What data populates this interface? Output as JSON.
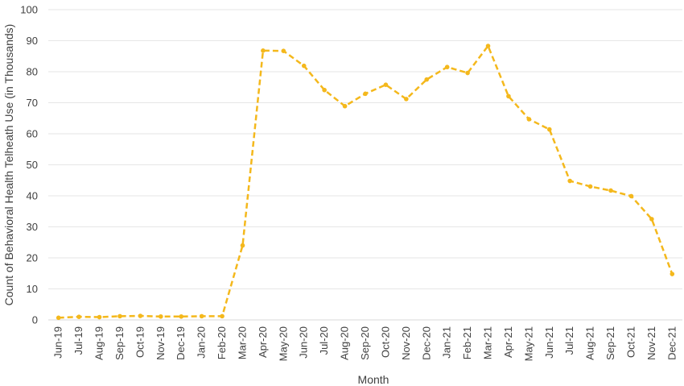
{
  "chart_data": {
    "type": "line",
    "title": "",
    "xlabel": "Month",
    "ylabel": "Count of  Behavioral Health Telheath Use (in Thousands)",
    "ylim": [
      0,
      100
    ],
    "yticks": [
      0,
      10,
      20,
      30,
      40,
      50,
      60,
      70,
      80,
      90,
      100
    ],
    "grid": true,
    "legend": "none",
    "categories": [
      "Jun-19",
      "Jul-19",
      "Aug-19",
      "Sep-19",
      "Oct-19",
      "Nov-19",
      "Dec-19",
      "Jan-20",
      "Feb-20",
      "Mar-20",
      "Apr-20",
      "May-20",
      "Jun-20",
      "Jul-20",
      "Aug-20",
      "Sep-20",
      "Oct-20",
      "Nov-20",
      "Dec-20",
      "Jan-21",
      "Feb-21",
      "Mar-21",
      "Apr-21",
      "May-21",
      "Jun-21",
      "Jul-21",
      "Aug-21",
      "Sep-21",
      "Oct-21",
      "Nov-21",
      "Dec-21"
    ],
    "series": [
      {
        "color": "#F4B81C",
        "line_style": "dashed",
        "marker": "circle",
        "values": [
          0.7,
          1.0,
          0.9,
          1.2,
          1.3,
          1.1,
          1.1,
          1.2,
          1.2,
          24.0,
          86.8,
          86.7,
          81.9,
          74.1,
          68.9,
          72.9,
          75.8,
          71.2,
          77.5,
          81.5,
          79.6,
          88.3,
          72.1,
          64.7,
          61.4,
          44.8,
          43.0,
          41.7,
          39.9,
          32.5,
          14.8
        ]
      }
    ]
  }
}
